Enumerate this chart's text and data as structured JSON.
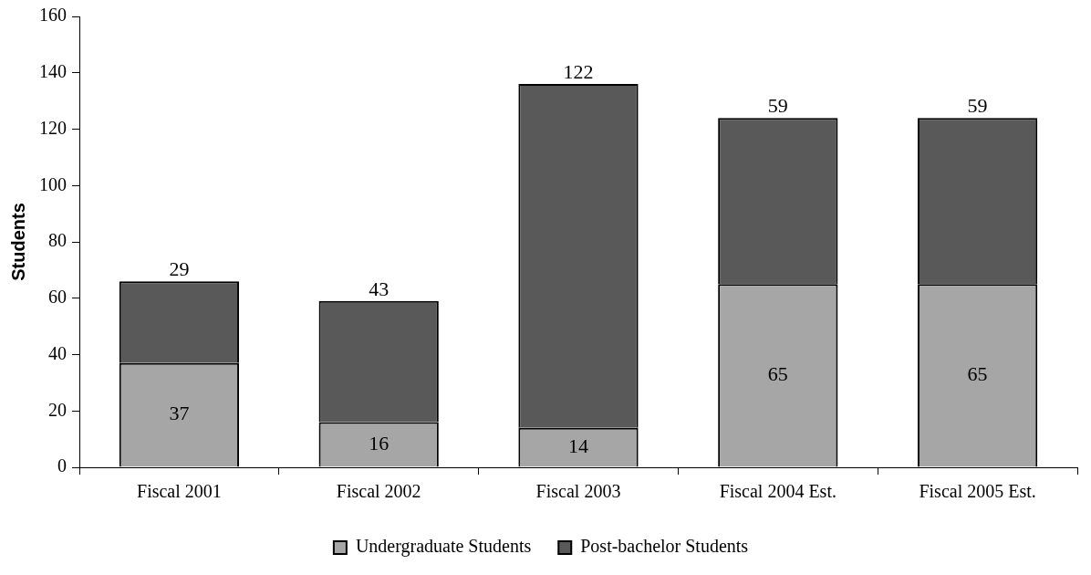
{
  "chart_data": {
    "type": "bar",
    "stacked": true,
    "ylabel": "Students",
    "categories": [
      "Fiscal 2001",
      "Fiscal 2002",
      "Fiscal 2003",
      "Fiscal 2004 Est.",
      "Fiscal 2005 Est."
    ],
    "series": [
      {
        "name": "Undergraduate Students",
        "color": "#a6a6a6",
        "values": [
          37,
          16,
          14,
          65,
          65
        ]
      },
      {
        "name": "Post-bachelor Students",
        "color": "#595959",
        "values": [
          29,
          43,
          122,
          59,
          59
        ]
      }
    ],
    "ylim": [
      0,
      160
    ],
    "yticks": [
      0,
      20,
      40,
      60,
      80,
      100,
      120,
      140,
      160
    ],
    "grid": false,
    "legend": "bottom",
    "data_labels": true
  }
}
